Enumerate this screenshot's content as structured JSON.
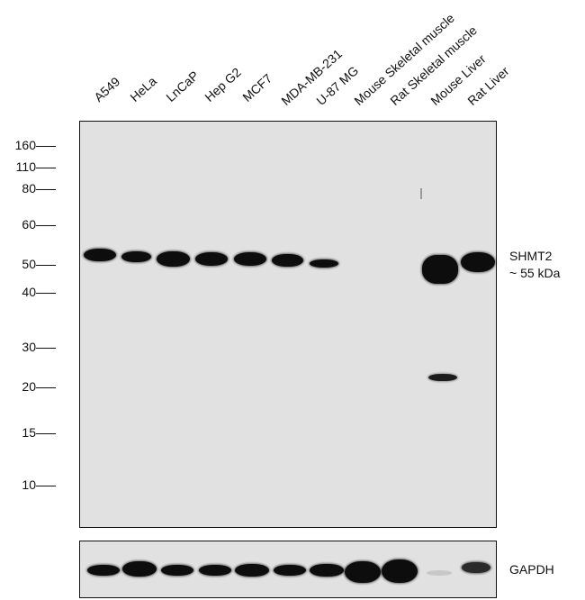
{
  "lanes": [
    "A549",
    "HeLa",
    "LnCaP",
    "Hep G2",
    "MCF7",
    "MDA-MB-231",
    "U-87 MG",
    "Mouse Skeletal muscle",
    "Rat Skeletal muscle",
    "Mouse Liver",
    "Rat Liver"
  ],
  "markers": [
    {
      "label": "160",
      "kda": 160
    },
    {
      "label": "110",
      "kda": 110
    },
    {
      "label": "80",
      "kda": 80
    },
    {
      "label": "60",
      "kda": 60
    },
    {
      "label": "50",
      "kda": 50
    },
    {
      "label": "40",
      "kda": 40
    },
    {
      "label": "30",
      "kda": 30
    },
    {
      "label": "20",
      "kda": 20
    },
    {
      "label": "15",
      "kda": 15
    },
    {
      "label": "10",
      "kda": 10
    }
  ],
  "target": {
    "name": "SHMT2",
    "size": "~ 55 kDa"
  },
  "loading_control": {
    "name": "GAPDH"
  },
  "colors": {
    "membrane": "#e1e1e1",
    "band": "#0d0d0d",
    "frame": "#111111"
  }
}
